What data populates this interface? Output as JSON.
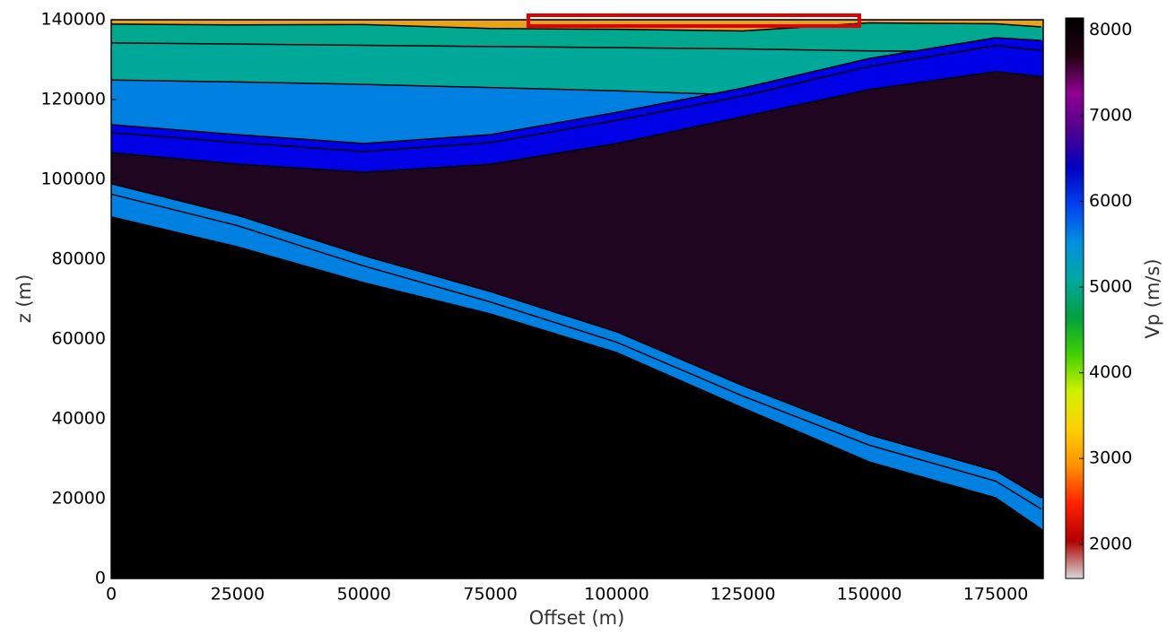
{
  "chart_data": {
    "type": "area",
    "xlabel": "Offset (m)",
    "ylabel": "z (m)",
    "xlim": [
      0,
      184400
    ],
    "xticks": [
      0,
      25000,
      50000,
      75000,
      100000,
      125000,
      150000,
      175000
    ],
    "ylim": [
      0,
      140000
    ],
    "yticks": [
      0,
      20000,
      40000,
      60000,
      80000,
      100000,
      120000,
      140000
    ],
    "x": [
      0,
      25000,
      50000,
      75000,
      100000,
      125000,
      150000,
      175000,
      184000
    ],
    "series": [
      {
        "color": "#e8a317",
        "values": [
          140000,
          140000,
          140000,
          140000,
          140000,
          140000,
          140000,
          140000,
          140000
        ]
      },
      {
        "color": "#00a890",
        "values": [
          138900,
          138700,
          138800,
          137800,
          137600,
          137200,
          139200,
          139000,
          138200
        ]
      },
      {
        "color": "#00a89a",
        "values": [
          134200,
          133900,
          133600,
          133300,
          133000,
          132700,
          132200,
          132000,
          132000
        ]
      },
      {
        "color": "#0080e0",
        "values": [
          124900,
          124400,
          123800,
          123000,
          122200,
          121100,
          120000,
          120000,
          120000
        ]
      },
      {
        "color": "#0000e6",
        "values": [
          113700,
          111200,
          109000,
          111200,
          116800,
          122900,
          130300,
          135500,
          134800
        ]
      },
      {
        "color": "#0000e6",
        "values": [
          111700,
          109200,
          107000,
          109200,
          114800,
          120900,
          128300,
          133500,
          132300
        ]
      },
      {
        "color": "#1f0520",
        "values": [
          106700,
          103800,
          101800,
          103800,
          109000,
          115700,
          122500,
          127000,
          125800
        ]
      },
      {
        "color": "#0080e0",
        "values": [
          98900,
          91000,
          80900,
          71900,
          61800,
          48300,
          36000,
          27000,
          20200
        ]
      },
      {
        "color": "#0080e0",
        "values": [
          96300,
          88400,
          78300,
          69300,
          59200,
          45700,
          33400,
          24400,
          17400
        ]
      },
      {
        "color": "#000000",
        "values": [
          90600,
          83100,
          74100,
          66300,
          56600,
          42700,
          29200,
          20200,
          12400
        ]
      }
    ],
    "colorbar": {
      "label": "Vp (m/s)",
      "clim": [
        1600,
        8140
      ],
      "ticks": [
        2000,
        3000,
        4000,
        5000,
        6000,
        7000,
        8000
      ],
      "colors": [
        "#d8d8d8",
        "#b00000",
        "#ff2000",
        "#ff9000",
        "#ffd000",
        "#d0f000",
        "#40d000",
        "#00a040",
        "#00a8a0",
        "#0090e0",
        "#0040f0",
        "#0000c0",
        "#500090",
        "#900090",
        "#200010",
        "#000000"
      ]
    }
  }
}
